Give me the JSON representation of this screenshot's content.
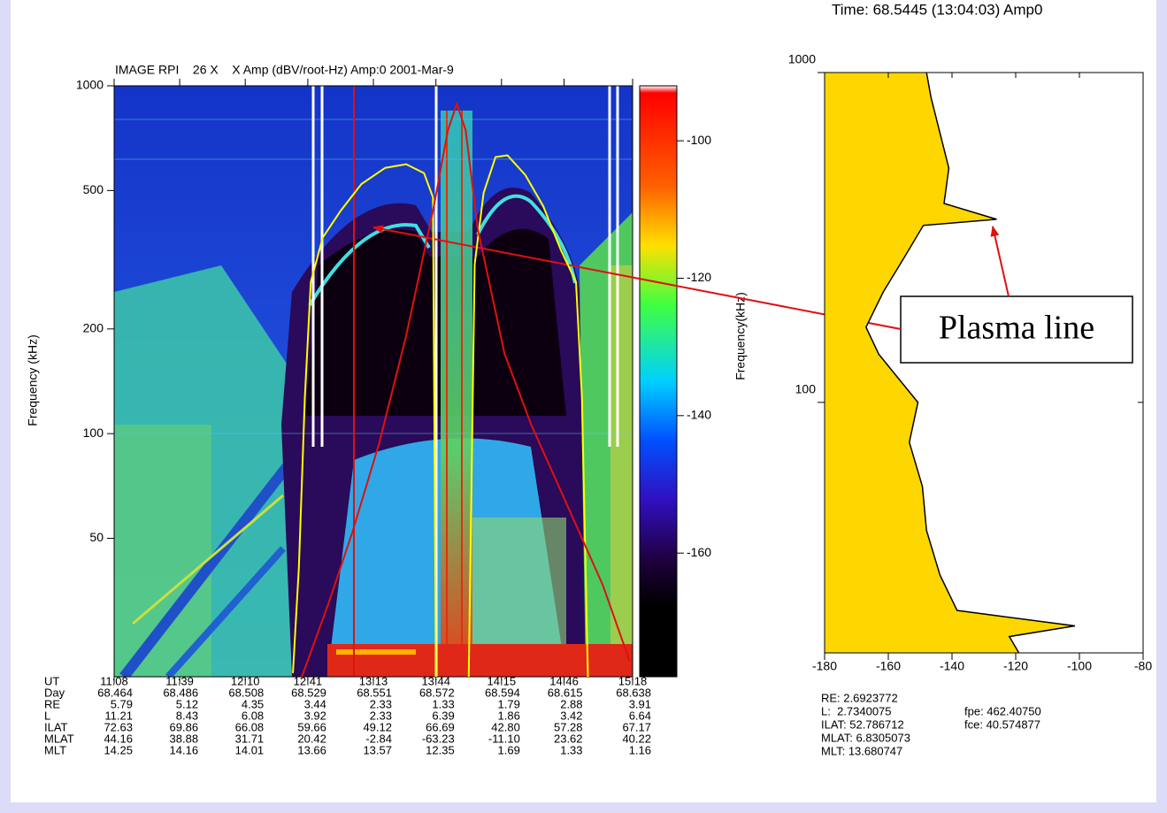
{
  "chart_data": [
    {
      "type": "spectrogram",
      "title": "IMAGE RPI    26 X    X Amp (dBV/root-Hz) Amp:0 2001-Mar-9",
      "y_label": "Frequency (kHz)",
      "log_y": true,
      "xlim": [
        68.464,
        68.638
      ],
      "xticks": [
        {
          "value": 68.464,
          "label": "11:08"
        },
        {
          "value": 68.486,
          "label": "11:39"
        },
        {
          "value": 68.508,
          "label": "12:10"
        },
        {
          "value": 68.529,
          "label": "12:41"
        },
        {
          "value": 68.551,
          "label": "13:13"
        },
        {
          "value": 68.572,
          "label": "13:44"
        },
        {
          "value": 68.594,
          "label": "14:15"
        },
        {
          "value": 68.615,
          "label": "14:46"
        },
        {
          "value": 68.638,
          "label": "15:18"
        }
      ],
      "ylim": [
        20,
        1000
      ],
      "yticks": [
        1000,
        500,
        200,
        100,
        50
      ],
      "series": [
        {
          "color": "#ffff00",
          "x": [
            68.524,
            68.526,
            68.528,
            68.53,
            68.534,
            68.54,
            68.547,
            68.555,
            68.562,
            68.568,
            68.571,
            68.572,
            null,
            68.583,
            68.585,
            68.588,
            68.592,
            68.596,
            68.602,
            68.608,
            68.614,
            68.619,
            68.621,
            68.623
          ],
          "values": [
            20.5,
            41.2,
            126.7,
            273,
            366,
            437,
            522,
            581,
            595,
            561,
            478,
            20,
            null,
            20,
            307,
            492,
            624,
            631,
            554,
            451,
            336,
            273,
            127,
            20
          ]
        },
        {
          "color": "#e01010",
          "x": [
            68.527,
            68.536,
            68.544,
            68.553,
            68.562,
            68.571,
            68.576,
            68.579,
            68.582,
            68.586,
            68.595,
            68.604,
            68.616,
            68.628,
            68.637
          ],
          "values": [
            20,
            32.6,
            52.2,
            94.2,
            191,
            437,
            744,
            888,
            744,
            389,
            170,
            106,
            62.4,
            36.7,
            22.2
          ]
        }
      ],
      "colorbar": {
        "lim": [
          -178,
          -92
        ],
        "ticks": [
          -100,
          -120,
          -140,
          -160
        ]
      },
      "colorbar_label": "Frequency(kHz)",
      "orbit_table": {
        "row_labels": [
          "UT",
          "Day",
          "RE",
          "L",
          "ILAT",
          "MLAT",
          "MLT"
        ],
        "rows": [
          [
            "5.79",
            "5.12",
            "4.35",
            "3.44",
            "2.33",
            "1.33",
            "1.79",
            "2.88",
            "3.91"
          ],
          [
            "11.21",
            "8.43",
            "6.08",
            "3.92",
            "2.33",
            "6.39",
            "1.86",
            "3.42",
            "6.64"
          ],
          [
            "72.63",
            "69.86",
            "66.08",
            "59.66",
            "49.12",
            "66.69",
            "42.80",
            "57.28",
            "67.17"
          ],
          [
            "44.16",
            "38.88",
            "31.71",
            "20.42",
            "-2.84",
            "-63.23",
            "-11.10",
            "23.62",
            "40.22"
          ],
          [
            "14.25",
            "14.16",
            "14.01",
            "13.66",
            "13.57",
            "12.35",
            "1.69",
            "1.33",
            "1.16"
          ]
        ]
      }
    },
    {
      "type": "spectrum",
      "title": "Time: 68.5445 (13:04:03) Amp0",
      "log_y": true,
      "xlim": [
        -180,
        -80
      ],
      "xticks": [
        -180,
        -160,
        -140,
        -120,
        -100,
        -80
      ],
      "ylim": [
        17.4,
        1000
      ],
      "yticks": [
        1000,
        100
      ],
      "fill": "#ffd700",
      "color": "#000000",
      "y": [
        1000,
        841,
        657,
        513,
        401,
        359,
        344,
        277,
        216,
        169,
        140,
        100,
        75.7,
        55.6,
        40.9,
        30.0,
        23.4,
        21.0,
        19.5,
        17.4
      ],
      "values": [
        -148,
        -146.6,
        -143.8,
        -141,
        -142.5,
        -126,
        -149,
        -154.8,
        -161.6,
        -167,
        -163,
        -150.7,
        -153.4,
        -149.3,
        -148,
        -143.8,
        -138.4,
        -101.4,
        -122,
        -119
      ],
      "annotation": "Plasma line",
      "info": [
        "RE: 2.6923772",
        "L:  2.7340075",
        "ILAT: 52.786712",
        "MLAT: 6.8305073",
        "MLT: 13.680747",
        "fpe: 462.40750",
        "fce: 40.574877"
      ]
    }
  ]
}
